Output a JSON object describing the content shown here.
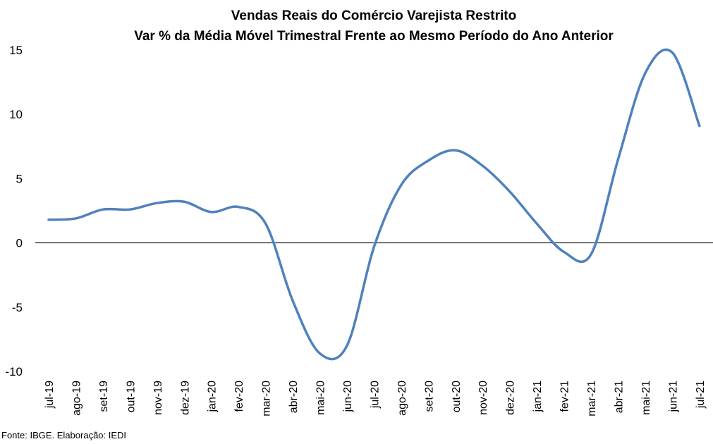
{
  "chart_data": {
    "type": "line",
    "title_line1": "Vendas Reais do Comércio Varejista Restrito",
    "title_line2": "Var % da Média Móvel Trimestral Frente ao Mesmo Período do Ano Anterior",
    "xlabel": "",
    "ylabel": "",
    "ylim": [
      -10,
      15
    ],
    "yticks": [
      "15",
      "10",
      "5",
      "0",
      "-5",
      "-10"
    ],
    "grid": false,
    "legend": "none",
    "line_color": "#4F81BD",
    "categories": [
      "jul-19",
      "ago-19",
      "set-19",
      "out-19",
      "nov-19",
      "dez-19",
      "jan-20",
      "fev-20",
      "mar-20",
      "abr-20",
      "mai-20",
      "jun-20",
      "jul-20",
      "ago-20",
      "set-20",
      "out-20",
      "nov-20",
      "dez-20",
      "jan-21",
      "fev-21",
      "mar-21",
      "abr-21",
      "mai-21",
      "jun-21",
      "jul-21"
    ],
    "series": [
      {
        "values": [
          1.8,
          1.9,
          2.6,
          2.6,
          3.1,
          3.2,
          2.4,
          2.8,
          1.5,
          -4.5,
          -8.6,
          -8.0,
          -0.3,
          4.5,
          6.4,
          7.2,
          6.0,
          4.0,
          1.5,
          -0.7,
          -0.9,
          6.5,
          13.2,
          14.8,
          9.1
        ]
      }
    ]
  },
  "footer": {
    "source": "Fonte: IBGE. Elaboração: IEDI"
  }
}
